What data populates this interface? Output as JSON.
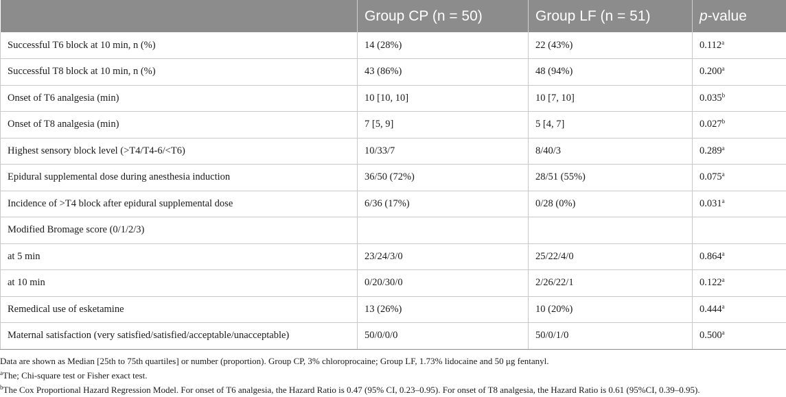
{
  "table": {
    "headers": {
      "col1": "",
      "col2": "Group CP (n = 50)",
      "col3": "Group LF (n = 51)",
      "col4_italic": "p",
      "col4_rest": "-value"
    },
    "rows": [
      {
        "label": "Successful T6 block at 10 min, n (%)",
        "cp": "14 (28%)",
        "lf": "22 (43%)",
        "p": "0.112",
        "sup": "a"
      },
      {
        "label": "Successful T8 block at 10 min, n (%)",
        "cp": "43 (86%)",
        "lf": "48 (94%)",
        "p": "0.200",
        "sup": "a"
      },
      {
        "label": "Onset of T6 analgesia (min)",
        "cp": "10 [10, 10]",
        "lf": "10 [7, 10]",
        "p": "0.035",
        "sup": "b"
      },
      {
        "label": "Onset of T8 analgesia (min)",
        "cp": "7 [5, 9]",
        "lf": "5 [4, 7]",
        "p": "0.027",
        "sup": "b"
      },
      {
        "label": "Highest sensory block level (>T4/T4-6/<T6)",
        "cp": "10/33/7",
        "lf": "8/40/3",
        "p": "0.289",
        "sup": "a"
      },
      {
        "label": "Epidural supplemental dose during anesthesia induction",
        "cp": "36/50 (72%)",
        "lf": "28/51 (55%)",
        "p": "0.075",
        "sup": "a"
      },
      {
        "label": "Incidence of >T4 block after epidural supplemental dose",
        "cp": "6/36 (17%)",
        "lf": "0/28 (0%)",
        "p": "0.031",
        "sup": "a"
      },
      {
        "label": "Modified Bromage score (0/1/2/3)",
        "cp": "",
        "lf": "",
        "p": "",
        "sup": ""
      },
      {
        "label": "at 5 min",
        "cp": "23/24/3/0",
        "lf": "25/22/4/0",
        "p": "0.864",
        "sup": "a"
      },
      {
        "label": "at 10 min",
        "cp": "0/20/30/0",
        "lf": "2/26/22/1",
        "p": "0.122",
        "sup": "a"
      },
      {
        "label": "Remedical use of esketamine",
        "cp": "13 (26%)",
        "lf": "10 (20%)",
        "p": "0.444",
        "sup": "a"
      },
      {
        "label": "Maternal satisfaction (very satisfied/satisfied/acceptable/unacceptable)",
        "cp": "50/0/0/0",
        "lf": "50/0/1/0",
        "p": "0.500",
        "sup": "a"
      }
    ]
  },
  "footnotes": {
    "main": "Data are shown as Median [25th to 75th quartiles] or number (proportion). Group CP, 3% chloroprocaine; Group LF, 1.73% lidocaine and 50 μg fentanyl.",
    "a_mark": "a",
    "a_text": "The; Chi-square test or Fisher exact test.",
    "b_mark": "b",
    "b_text": "The Cox Proportional Hazard Regression Model. For onset of T6 analgesia, the Hazard Ratio is 0.47 (95% CI, 0.23–0.95). For onset of T8 analgesia, the Hazard Ratio is 0.61 (95%CI, 0.39–0.95)."
  }
}
